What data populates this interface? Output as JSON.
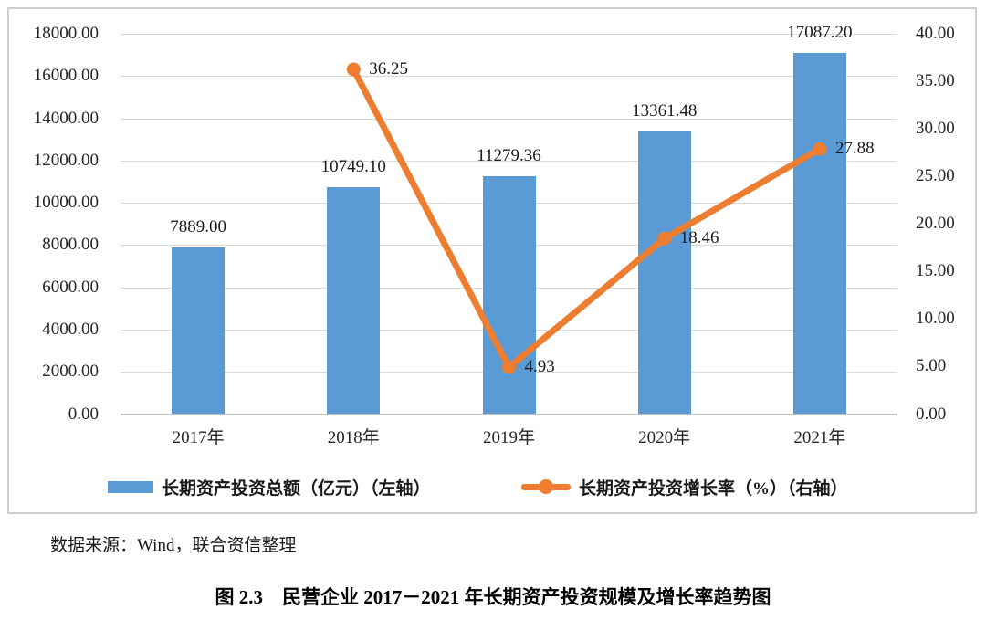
{
  "chart_data": {
    "type": "bar",
    "subtype": "combo-bar-line-dual-axis",
    "categories": [
      "2017年",
      "2018年",
      "2019年",
      "2020年",
      "2021年"
    ],
    "series": [
      {
        "name": "长期资产投资总额（亿元）（左轴）",
        "type": "bar",
        "axis": "left",
        "color": "#5b9bd5",
        "values": [
          7889.0,
          10749.1,
          11279.36,
          13361.48,
          17087.2
        ],
        "data_labels": [
          "7889.00",
          "10749.10",
          "11279.36",
          "13361.48",
          "17087.20"
        ]
      },
      {
        "name": "长期资产投资增长率（%）（右轴）",
        "type": "line",
        "axis": "right",
        "color": "#ed7d31",
        "values": [
          null,
          36.25,
          4.93,
          18.46,
          27.88
        ],
        "data_labels": [
          null,
          "36.25",
          "4.93",
          "18.46",
          "27.88"
        ]
      }
    ],
    "left_axis": {
      "min": 0,
      "max": 18000,
      "step": 2000,
      "tick_labels": [
        "18000.00",
        "16000.00",
        "14000.00",
        "12000.00",
        "10000.00",
        "8000.00",
        "6000.00",
        "4000.00",
        "2000.00",
        "0.00"
      ]
    },
    "right_axis": {
      "min": 0,
      "max": 40,
      "step": 5,
      "tick_labels": [
        "40.00",
        "35.00",
        "30.00",
        "25.00",
        "20.00",
        "15.00",
        "10.00",
        "5.00",
        "0.00"
      ]
    },
    "grid": true,
    "gridline_color": "#d9d9d9",
    "axis_line_color": "#bfbfbf",
    "legend_position": "bottom",
    "title": ""
  },
  "source_note": "数据来源：Wind，联合资信整理",
  "caption": "图 2.3　民营企业 2017－2021 年长期资产投资规模及增长率趋势图"
}
